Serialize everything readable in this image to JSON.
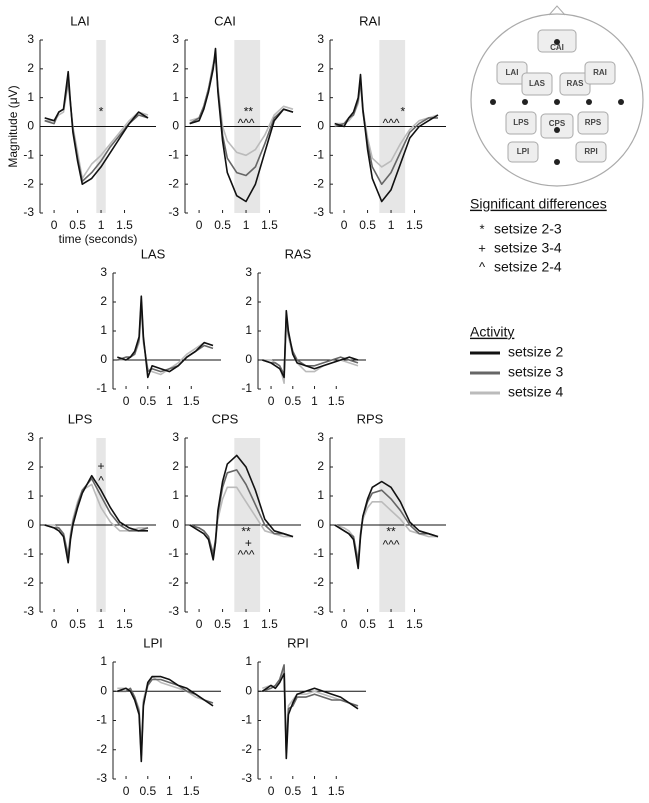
{
  "chart_data": [
    {
      "type": "line",
      "title": "LAI",
      "xlabel": "time (seconds)",
      "ylabel": "Magnitude (μV)",
      "x": [
        -0.2,
        0,
        0.1,
        0.2,
        0.3,
        0.35,
        0.4,
        0.5,
        0.6,
        0.8,
        1.0,
        1.2,
        1.4,
        1.6,
        1.8,
        2.0
      ],
      "xlim": [
        -0.3,
        2.0
      ],
      "xticks": [
        0,
        0.5,
        1,
        1.5
      ],
      "ylim": [
        -3,
        3
      ],
      "yticks": [
        -3,
        -2,
        -1,
        0,
        1,
        2,
        3
      ],
      "shade": [
        0.9,
        1.1
      ],
      "series": [
        {
          "values": [
            0.3,
            0.2,
            0.5,
            0.6,
            1.9,
            0.8,
            -0.2,
            -1.2,
            -2.0,
            -1.8,
            -1.4,
            -0.9,
            -0.4,
            0.1,
            0.5,
            0.3
          ]
        },
        {
          "values": [
            0.2,
            0.1,
            0.5,
            0.6,
            1.6,
            0.8,
            -0.1,
            -1.1,
            -1.9,
            -1.6,
            -1.2,
            -0.7,
            -0.3,
            0.1,
            0.4,
            0.3
          ]
        },
        {
          "values": [
            0.2,
            0.2,
            0.4,
            0.5,
            1.5,
            0.7,
            0.0,
            -0.9,
            -1.8,
            -1.3,
            -1.0,
            -0.6,
            -0.2,
            0.2,
            0.5,
            0.4
          ]
        }
      ],
      "annotations": [
        {
          "text": "*",
          "x": 1.0,
          "y": 0.5
        }
      ]
    },
    {
      "type": "line",
      "title": "CAI",
      "x": [
        -0.2,
        0,
        0.1,
        0.2,
        0.3,
        0.35,
        0.4,
        0.5,
        0.6,
        0.8,
        1.0,
        1.2,
        1.4,
        1.6,
        1.8,
        2.0
      ],
      "xlim": [
        -0.3,
        2.0
      ],
      "xticks": [
        0,
        0.5,
        1,
        1.5
      ],
      "ylim": [
        -3,
        3
      ],
      "yticks": [
        -3,
        -2,
        -1,
        0,
        1,
        2,
        3
      ],
      "shade": [
        0.75,
        1.3
      ],
      "series": [
        {
          "values": [
            0.1,
            0.2,
            0.6,
            1.2,
            2.0,
            2.7,
            1.2,
            -0.5,
            -1.6,
            -2.4,
            -2.6,
            -2.0,
            -0.9,
            0.2,
            0.6,
            0.5
          ]
        },
        {
          "values": [
            0.1,
            0.3,
            0.7,
            1.3,
            2.1,
            2.4,
            1.3,
            -0.3,
            -1.1,
            -1.6,
            -1.7,
            -1.4,
            -0.6,
            0.3,
            0.6,
            0.5
          ]
        },
        {
          "values": [
            0.2,
            0.3,
            0.7,
            1.3,
            2.2,
            2.5,
            1.4,
            0.0,
            -0.5,
            -0.9,
            -1.0,
            -0.8,
            -0.3,
            0.4,
            0.7,
            0.6
          ]
        }
      ],
      "annotations": [
        {
          "text": "**",
          "x": 1.05,
          "y": 0.5
        },
        {
          "text": "^^^",
          "x": 1.0,
          "y": 0.1
        }
      ]
    },
    {
      "type": "line",
      "title": "RAI",
      "x": [
        -0.2,
        0,
        0.1,
        0.2,
        0.3,
        0.35,
        0.4,
        0.5,
        0.6,
        0.8,
        1.0,
        1.2,
        1.4,
        1.6,
        1.8,
        2.0
      ],
      "xlim": [
        -0.3,
        2.0
      ],
      "xticks": [
        0,
        0.5,
        1,
        1.5
      ],
      "ylim": [
        -3,
        3
      ],
      "yticks": [
        -3,
        -2,
        -1,
        0,
        1,
        2,
        3
      ],
      "shade": [
        0.75,
        1.3
      ],
      "series": [
        {
          "values": [
            0.1,
            0.0,
            0.3,
            0.5,
            1.0,
            1.8,
            0.6,
            -0.8,
            -1.8,
            -2.6,
            -2.2,
            -1.3,
            -0.4,
            0.0,
            0.2,
            0.4
          ]
        },
        {
          "values": [
            0.0,
            0.1,
            0.3,
            0.4,
            0.9,
            1.6,
            0.5,
            -0.6,
            -1.4,
            -2.0,
            -1.6,
            -0.9,
            -0.2,
            0.1,
            0.3,
            0.3
          ]
        },
        {
          "values": [
            0.1,
            0.1,
            0.2,
            0.4,
            0.8,
            1.5,
            0.6,
            -0.4,
            -1.1,
            -1.4,
            -1.2,
            -0.6,
            -0.1,
            0.2,
            0.3,
            0.4
          ]
        }
      ],
      "annotations": [
        {
          "text": "^^^",
          "x": 1.0,
          "y": 0.1
        },
        {
          "text": "*",
          "x": 1.25,
          "y": 0.5
        }
      ]
    },
    {
      "type": "line",
      "title": "LAS",
      "x": [
        -0.2,
        0,
        0.1,
        0.2,
        0.3,
        0.35,
        0.4,
        0.5,
        0.6,
        0.8,
        1.0,
        1.2,
        1.4,
        1.6,
        1.8,
        2.0
      ],
      "xlim": [
        -0.3,
        2.0
      ],
      "xticks": [
        0,
        0.5,
        1,
        1.5
      ],
      "ylim": [
        -1,
        3
      ],
      "yticks": [
        -1,
        0,
        1,
        2,
        3
      ],
      "series": [
        {
          "values": [
            0.1,
            0.0,
            0.1,
            0.3,
            0.8,
            2.2,
            0.8,
            -0.6,
            -0.2,
            -0.3,
            -0.4,
            -0.2,
            0.1,
            0.3,
            0.6,
            0.5
          ]
        },
        {
          "values": [
            0.0,
            0.1,
            0.1,
            0.2,
            0.7,
            2.0,
            0.7,
            -0.4,
            -0.3,
            -0.4,
            -0.3,
            -0.2,
            0.1,
            0.3,
            0.5,
            0.4
          ]
        },
        {
          "values": [
            0.0,
            0.0,
            0.1,
            0.2,
            0.6,
            1.9,
            0.6,
            -0.3,
            -0.4,
            -0.5,
            -0.3,
            -0.1,
            0.2,
            0.4,
            0.6,
            0.5
          ]
        }
      ]
    },
    {
      "type": "line",
      "title": "RAS",
      "x": [
        -0.2,
        0,
        0.1,
        0.2,
        0.3,
        0.35,
        0.4,
        0.5,
        0.6,
        0.8,
        1.0,
        1.2,
        1.4,
        1.6,
        1.8,
        2.0
      ],
      "xlim": [
        -0.3,
        2.0
      ],
      "xticks": [
        0,
        0.5,
        1,
        1.5
      ],
      "ylim": [
        -1,
        3
      ],
      "yticks": [
        -1,
        0,
        1,
        2,
        3
      ],
      "series": [
        {
          "values": [
            0.0,
            -0.1,
            -0.2,
            -0.3,
            -0.6,
            1.7,
            1.0,
            0.2,
            -0.1,
            -0.2,
            -0.3,
            -0.2,
            -0.1,
            0.0,
            0.1,
            0.0
          ]
        },
        {
          "values": [
            0.0,
            -0.1,
            -0.1,
            -0.2,
            -0.5,
            1.5,
            0.9,
            0.3,
            0.0,
            -0.2,
            -0.2,
            -0.1,
            0.0,
            0.1,
            0.0,
            -0.1
          ]
        },
        {
          "values": [
            0.0,
            0.0,
            -0.1,
            -0.2,
            -0.8,
            1.3,
            0.8,
            0.2,
            -0.1,
            -0.4,
            -0.4,
            -0.2,
            -0.1,
            0.0,
            -0.1,
            -0.2
          ]
        }
      ]
    },
    {
      "type": "line",
      "title": "LPS",
      "x": [
        -0.2,
        0,
        0.1,
        0.2,
        0.3,
        0.35,
        0.4,
        0.5,
        0.6,
        0.8,
        1.0,
        1.2,
        1.4,
        1.6,
        1.8,
        2.0
      ],
      "xlim": [
        -0.3,
        2.0
      ],
      "xticks": [
        0,
        0.5,
        1,
        1.5
      ],
      "ylim": [
        -3,
        3
      ],
      "yticks": [
        -3,
        -2,
        -1,
        0,
        1,
        2,
        3
      ],
      "shade": [
        0.9,
        1.1
      ],
      "series": [
        {
          "values": [
            0,
            -0.1,
            -0.2,
            -0.4,
            -1.3,
            -0.5,
            0,
            0.6,
            1.1,
            1.7,
            1.2,
            0.6,
            0.1,
            -0.1,
            -0.2,
            -0.2
          ]
        },
        {
          "values": [
            0,
            -0.1,
            -0.1,
            -0.3,
            -1.1,
            -0.4,
            0.1,
            0.7,
            1.2,
            1.6,
            1.0,
            0.4,
            0,
            -0.2,
            -0.2,
            -0.1
          ]
        },
        {
          "values": [
            0,
            0,
            -0.1,
            -0.3,
            -1.0,
            -0.3,
            0.2,
            0.8,
            1.2,
            1.4,
            0.6,
            0.1,
            -0.2,
            -0.2,
            -0.1,
            -0.1
          ]
        }
      ],
      "annotations": [
        {
          "text": "+",
          "x": 1.0,
          "y": 2.0
        },
        {
          "text": "^",
          "x": 1.0,
          "y": 1.5
        }
      ]
    },
    {
      "type": "line",
      "title": "CPS",
      "x": [
        -0.2,
        0,
        0.1,
        0.2,
        0.3,
        0.35,
        0.4,
        0.5,
        0.6,
        0.8,
        1.0,
        1.2,
        1.4,
        1.6,
        1.8,
        2.0
      ],
      "xlim": [
        -0.3,
        2.0
      ],
      "xticks": [
        0,
        0.5,
        1,
        1.5
      ],
      "ylim": [
        -3,
        3
      ],
      "yticks": [
        -3,
        -2,
        -1,
        0,
        1,
        2,
        3
      ],
      "shade": [
        0.75,
        1.3
      ],
      "series": [
        {
          "values": [
            0,
            -0.2,
            -0.3,
            -0.5,
            -1.2,
            -0.6,
            0.5,
            1.5,
            2.1,
            2.4,
            2.0,
            1.2,
            0.2,
            -0.2,
            -0.3,
            -0.4
          ]
        },
        {
          "values": [
            0,
            -0.1,
            -0.2,
            -0.4,
            -1.0,
            -0.5,
            0.4,
            1.3,
            1.8,
            1.9,
            1.4,
            0.7,
            0.0,
            -0.3,
            -0.3,
            -0.4
          ]
        },
        {
          "values": [
            0,
            -0.1,
            -0.2,
            -0.4,
            -1.1,
            -0.6,
            0.2,
            0.9,
            1.3,
            1.3,
            0.8,
            0.3,
            -0.2,
            -0.3,
            -0.4,
            -0.4
          ]
        }
      ],
      "annotations": [
        {
          "text": "**",
          "x": 1.0,
          "y": -0.25
        },
        {
          "text": "+",
          "x": 1.05,
          "y": -0.65
        },
        {
          "text": "^^^",
          "x": 1.0,
          "y": -1.05
        }
      ]
    },
    {
      "type": "line",
      "title": "RPS",
      "x": [
        -0.2,
        0,
        0.1,
        0.2,
        0.3,
        0.35,
        0.4,
        0.5,
        0.6,
        0.8,
        1.0,
        1.2,
        1.4,
        1.6,
        1.8,
        2.0
      ],
      "xlim": [
        -0.3,
        2.0
      ],
      "xticks": [
        0,
        0.5,
        1,
        1.5
      ],
      "ylim": [
        -3,
        3
      ],
      "yticks": [
        -3,
        -2,
        -1,
        0,
        1,
        2,
        3
      ],
      "shade": [
        0.75,
        1.3
      ],
      "series": [
        {
          "values": [
            0,
            -0.2,
            -0.3,
            -0.5,
            -1.5,
            -0.4,
            0.3,
            0.9,
            1.3,
            1.5,
            1.3,
            0.8,
            0.1,
            -0.2,
            -0.3,
            -0.4
          ]
        },
        {
          "values": [
            0,
            -0.2,
            -0.3,
            -0.4,
            -1.3,
            -0.3,
            0.3,
            0.8,
            1.1,
            1.2,
            0.9,
            0.5,
            0.0,
            -0.3,
            -0.3,
            -0.4
          ]
        },
        {
          "values": [
            0,
            -0.1,
            -0.2,
            -0.4,
            -1.2,
            -0.4,
            0.2,
            0.6,
            0.8,
            0.8,
            0.5,
            0.2,
            -0.2,
            -0.3,
            -0.4,
            -0.4
          ]
        }
      ],
      "annotations": [
        {
          "text": "**",
          "x": 1.0,
          "y": -0.25
        },
        {
          "text": "^^^",
          "x": 1.0,
          "y": -0.7
        }
      ]
    },
    {
      "type": "line",
      "title": "LPI",
      "x": [
        -0.2,
        0,
        0.1,
        0.2,
        0.3,
        0.35,
        0.4,
        0.5,
        0.6,
        0.8,
        1.0,
        1.2,
        1.4,
        1.6,
        1.8,
        2.0
      ],
      "xlim": [
        -0.3,
        2.0
      ],
      "xticks": [
        0,
        0.5,
        1,
        1.5
      ],
      "ylim": [
        -3,
        1
      ],
      "yticks": [
        -3,
        -2,
        -1,
        0,
        1
      ],
      "series": [
        {
          "values": [
            0,
            0.1,
            0.0,
            -0.3,
            -0.8,
            -2.4,
            -0.5,
            0.3,
            0.5,
            0.5,
            0.4,
            0.2,
            0.1,
            -0.1,
            -0.3,
            -0.5
          ]
        },
        {
          "values": [
            0,
            0.0,
            0.1,
            -0.2,
            -0.7,
            -2.2,
            -0.4,
            0.2,
            0.4,
            0.4,
            0.3,
            0.2,
            0.0,
            -0.1,
            -0.3,
            -0.4
          ]
        },
        {
          "values": [
            0.1,
            0.1,
            0.0,
            -0.2,
            -0.6,
            -2.0,
            -0.3,
            0.3,
            0.5,
            0.3,
            0.2,
            0.1,
            0.0,
            -0.2,
            -0.3,
            -0.5
          ]
        }
      ]
    },
    {
      "type": "line",
      "title": "RPI",
      "x": [
        -0.2,
        0,
        0.1,
        0.2,
        0.3,
        0.35,
        0.4,
        0.5,
        0.6,
        0.8,
        1.0,
        1.2,
        1.4,
        1.6,
        1.8,
        2.0
      ],
      "xlim": [
        -0.3,
        2.0
      ],
      "xticks": [
        0,
        0.5,
        1,
        1.5
      ],
      "ylim": [
        -3,
        1
      ],
      "yticks": [
        -3,
        -2,
        -1,
        0,
        1
      ],
      "series": [
        {
          "values": [
            0,
            0.2,
            0.1,
            0.3,
            0.6,
            -2.3,
            -0.8,
            -0.4,
            -0.1,
            0.0,
            0.1,
            0.0,
            -0.1,
            -0.2,
            -0.4,
            -0.6
          ]
        },
        {
          "values": [
            0,
            0.1,
            0.2,
            0.4,
            0.9,
            -2.1,
            -0.6,
            -0.5,
            -0.2,
            -0.2,
            -0.1,
            -0.2,
            -0.3,
            -0.3,
            -0.4,
            -0.5
          ]
        },
        {
          "values": [
            0.1,
            0.2,
            0.1,
            0.3,
            0.8,
            -2.0,
            -0.5,
            -0.3,
            -0.1,
            -0.1,
            0.0,
            -0.1,
            -0.2,
            -0.3,
            -0.4,
            -0.5
          ]
        }
      ]
    }
  ],
  "significance_legend": {
    "title": "Significant differences",
    "items": [
      {
        "symbol": "*",
        "label": "setsize 2-3"
      },
      {
        "symbol": "+",
        "label": "setsize 3-4"
      },
      {
        "symbol": "^",
        "label": "setsize 2-4"
      }
    ]
  },
  "activity_legend": {
    "title": "Activity",
    "series": [
      {
        "name": "setsize 2",
        "color": "#111111"
      },
      {
        "name": "setsize 3",
        "color": "#666666"
      },
      {
        "name": "setsize 4",
        "color": "#bbbbbb"
      }
    ]
  },
  "head_map": {
    "regions": [
      "CAI",
      "LAI",
      "LAS",
      "RAS",
      "RAI",
      "LPS",
      "CPS",
      "RPS",
      "LPI",
      "RPI"
    ]
  }
}
